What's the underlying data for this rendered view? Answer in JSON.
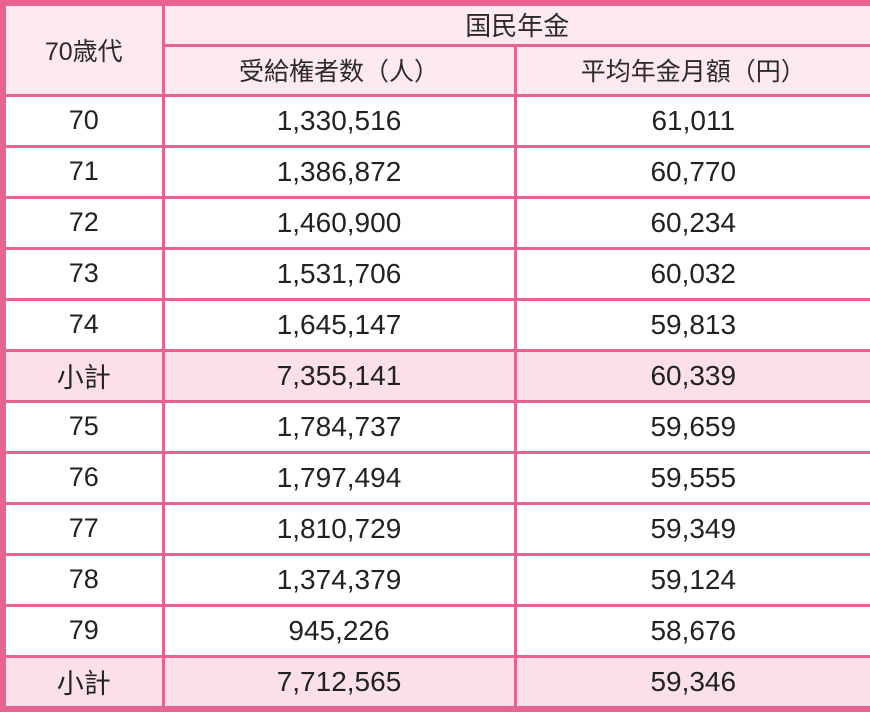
{
  "colors": {
    "border": "#e8638e",
    "header_bg": "#fde9f1",
    "subtotal_bg": "#fbdfeb",
    "row_bg": "#ffffff",
    "text": "#222222"
  },
  "chart_data": {
    "type": "table",
    "title": "国民年金",
    "corner_header": "70歳代",
    "group_header": "国民年金",
    "columns": [
      "受給権者数（人）",
      "平均年金月額（円）"
    ],
    "rows": [
      {
        "label": "70",
        "beneficiaries": "1,330,516",
        "avg_monthly": "61,011",
        "subtotal": false
      },
      {
        "label": "71",
        "beneficiaries": "1,386,872",
        "avg_monthly": "60,770",
        "subtotal": false
      },
      {
        "label": "72",
        "beneficiaries": "1,460,900",
        "avg_monthly": "60,234",
        "subtotal": false
      },
      {
        "label": "73",
        "beneficiaries": "1,531,706",
        "avg_monthly": "60,032",
        "subtotal": false
      },
      {
        "label": "74",
        "beneficiaries": "1,645,147",
        "avg_monthly": "59,813",
        "subtotal": false
      },
      {
        "label": "小計",
        "beneficiaries": "7,355,141",
        "avg_monthly": "60,339",
        "subtotal": true
      },
      {
        "label": "75",
        "beneficiaries": "1,784,737",
        "avg_monthly": "59,659",
        "subtotal": false
      },
      {
        "label": "76",
        "beneficiaries": "1,797,494",
        "avg_monthly": "59,555",
        "subtotal": false
      },
      {
        "label": "77",
        "beneficiaries": "1,810,729",
        "avg_monthly": "59,349",
        "subtotal": false
      },
      {
        "label": "78",
        "beneficiaries": "1,374,379",
        "avg_monthly": "59,124",
        "subtotal": false
      },
      {
        "label": "79",
        "beneficiaries": "945,226",
        "avg_monthly": "58,676",
        "subtotal": false
      },
      {
        "label": "小計",
        "beneficiaries": "7,712,565",
        "avg_monthly": "59,346",
        "subtotal": true
      }
    ]
  }
}
